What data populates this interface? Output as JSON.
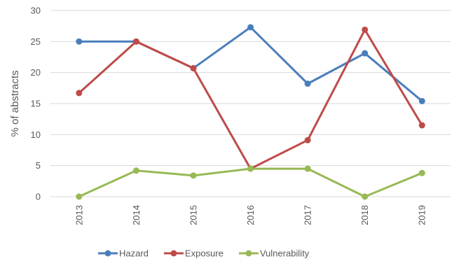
{
  "chart_data": {
    "type": "line",
    "categories": [
      "2013",
      "2014",
      "2015",
      "2016",
      "2017",
      "2018",
      "2019"
    ],
    "ylabel": "% of abstracts",
    "xlabel": "",
    "ylim": [
      0,
      30
    ],
    "yticks": [
      0,
      5,
      10,
      15,
      20,
      25,
      30
    ],
    "grid": true,
    "legend": "bottom",
    "series": [
      {
        "name": "Hazard",
        "color": "#4a7ebb",
        "values": [
          25,
          25,
          20.7,
          27.3,
          18.2,
          23.1,
          15.4
        ]
      },
      {
        "name": "Exposure",
        "color": "#be4b48",
        "values": [
          16.7,
          25,
          20.7,
          4.5,
          9.1,
          26.9,
          11.5
        ]
      },
      {
        "name": "Vulnerability",
        "color": "#98b954",
        "values": [
          0,
          4.2,
          3.4,
          4.5,
          4.5,
          0,
          3.8
        ]
      }
    ]
  }
}
